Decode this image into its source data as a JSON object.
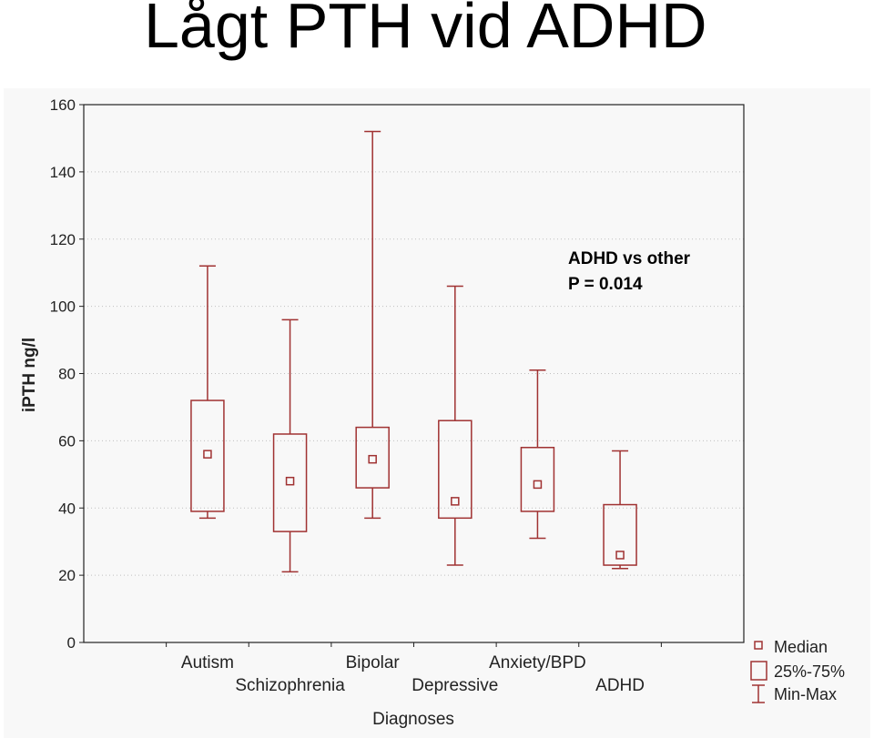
{
  "slide": {
    "title": "Lågt PTH vid ADHD"
  },
  "chart_data": {
    "type": "box",
    "title": "",
    "xlabel": "Diagnoses",
    "ylabel": "iPTH ng/l",
    "ylim": [
      0,
      160
    ],
    "yticks": [
      0,
      20,
      40,
      60,
      80,
      100,
      120,
      140,
      160
    ],
    "grid": true,
    "categories": [
      "Autism",
      "Schizophrenia",
      "Bipolar",
      "Depressive",
      "Anxiety/BPD",
      "ADHD"
    ],
    "series": [
      {
        "category": "Autism",
        "min": 37,
        "q1": 39,
        "median": 56,
        "q3": 72,
        "max": 112
      },
      {
        "category": "Schizophrenia",
        "min": 21,
        "q1": 33,
        "median": 48,
        "q3": 62,
        "max": 96
      },
      {
        "category": "Bipolar",
        "min": 37,
        "q1": 46,
        "median": 54.5,
        "q3": 64,
        "max": 152
      },
      {
        "category": "Depressive",
        "min": 23,
        "q1": 37,
        "median": 42,
        "q3": 66,
        "max": 106
      },
      {
        "category": "Anxiety/BPD",
        "min": 31,
        "q1": 39,
        "median": 47,
        "q3": 58,
        "max": 81
      },
      {
        "category": "ADHD",
        "min": 22,
        "q1": 23,
        "median": 26,
        "q3": 41,
        "max": 57
      }
    ],
    "legend": {
      "position": "bottom-right",
      "items": [
        "Median",
        "25%-75%",
        "Min-Max"
      ]
    },
    "annotation": {
      "lines": [
        "ADHD vs other",
        "P = 0.014"
      ]
    },
    "colors": {
      "series": "#a03232",
      "grid": "#c0c0c0",
      "panel": "#f8f8f8"
    }
  }
}
